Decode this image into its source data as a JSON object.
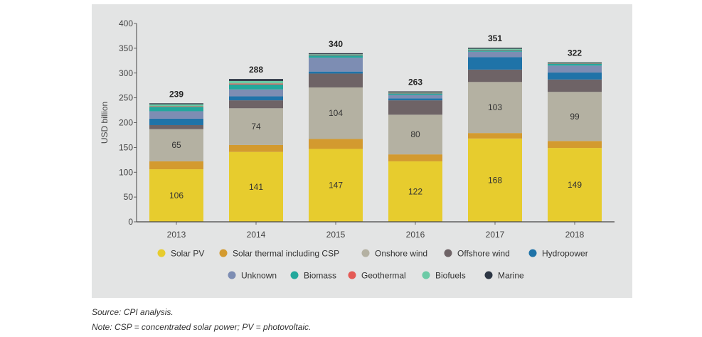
{
  "chart_data": {
    "type": "bar",
    "stacked": true,
    "ylabel": "USD billion",
    "ylim": [
      0,
      400
    ],
    "yticks": [
      0,
      50,
      100,
      150,
      200,
      250,
      300,
      350,
      400
    ],
    "grid": false,
    "legend_position": "bottom",
    "categories": [
      "2013",
      "2014",
      "2015",
      "2016",
      "2017",
      "2018"
    ],
    "totals": [
      239,
      288,
      340,
      263,
      351,
      322
    ],
    "series": [
      {
        "name": "Solar PV",
        "color": "#e7cc2e",
        "values": [
          106,
          141,
          147,
          122,
          168,
          149
        ],
        "show_labels": true
      },
      {
        "name": "Solar thermal including CSP",
        "color": "#d39a2f",
        "values": [
          16,
          14,
          20,
          14,
          11,
          14
        ],
        "show_labels": false
      },
      {
        "name": "Onshore wind",
        "color": "#b4b1a2",
        "values": [
          65,
          74,
          104,
          80,
          103,
          99
        ],
        "show_labels": true
      },
      {
        "name": "Offshore wind",
        "color": "#6e6366",
        "values": [
          8,
          16,
          28,
          29,
          25,
          25
        ],
        "show_labels": false
      },
      {
        "name": "Hydropower",
        "color": "#1f73a8",
        "values": [
          13,
          8,
          4,
          4,
          25,
          14
        ],
        "show_labels": false
      },
      {
        "name": "Unknown",
        "color": "#7d8db3",
        "values": [
          15,
          14,
          28,
          7,
          11,
          14
        ],
        "show_labels": false
      },
      {
        "name": "Biomass",
        "color": "#23a89c",
        "values": [
          9,
          10,
          5,
          3,
          3,
          4
        ],
        "show_labels": false
      },
      {
        "name": "Geothermal",
        "color": "#e45a55",
        "values": [
          1,
          2,
          1,
          1,
          1,
          1
        ],
        "show_labels": false
      },
      {
        "name": "Biofuels",
        "color": "#6ccaa6",
        "values": [
          4,
          5,
          1,
          1,
          2,
          1
        ],
        "show_labels": false
      },
      {
        "name": "Marine",
        "color": "#2d3644",
        "values": [
          2,
          4,
          2,
          2,
          2,
          1
        ],
        "show_labels": false
      }
    ]
  },
  "notes": {
    "source": "Source: CPI analysis.",
    "abbreviations": "Note: CSP = concentrated solar power; PV = photovoltaic."
  }
}
